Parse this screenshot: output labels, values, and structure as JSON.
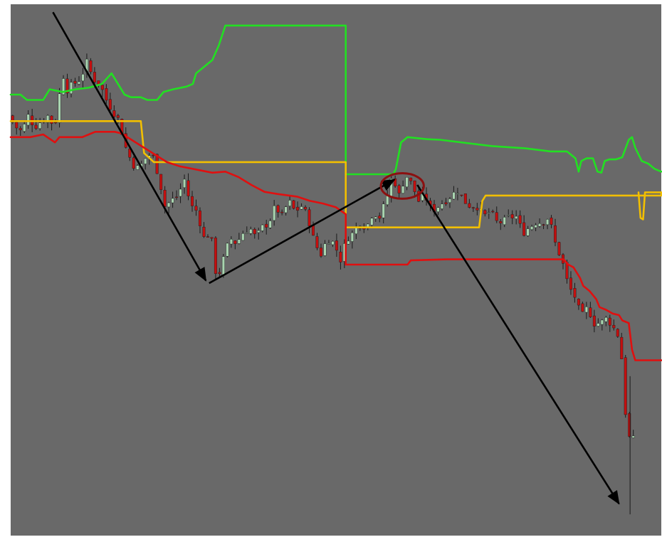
{
  "chart_data": {
    "type": "line",
    "title": "",
    "xlabel": "",
    "ylabel": "",
    "grid": false,
    "legend": "none",
    "x_range": [
      0,
      100
    ],
    "y_range": [
      0,
      100
    ],
    "colors": {
      "background": "#696969",
      "frame": "#ffffff",
      "upper_band": "#22e022",
      "middle_band": "#f2bf00",
      "lower_band": "#e01010",
      "bull_candle": "#a9d5b0",
      "bear_candle": "#c40f0f",
      "wick": "#1a1a1a",
      "arrow": "#000000",
      "highlight_ellipse": "#8b1010"
    },
    "series": [
      {
        "role": "upper-band",
        "color": "#22e022",
        "points": [
          [
            0,
            83
          ],
          [
            1.5,
            83
          ],
          [
            2.5,
            82
          ],
          [
            5,
            82
          ],
          [
            6,
            84
          ],
          [
            8,
            83.5
          ],
          [
            10,
            84
          ],
          [
            12,
            84.3
          ],
          [
            14,
            85
          ],
          [
            15.5,
            87
          ],
          [
            16.5,
            85
          ],
          [
            17.5,
            83
          ],
          [
            18.5,
            82.5
          ],
          [
            20,
            82.5
          ],
          [
            21,
            82
          ],
          [
            22.5,
            82
          ],
          [
            23.5,
            83.5
          ],
          [
            25,
            84
          ],
          [
            27,
            84.5
          ],
          [
            28,
            85
          ],
          [
            28.5,
            87
          ],
          [
            29.5,
            88
          ],
          [
            31,
            89.5
          ],
          [
            32,
            92.3
          ],
          [
            33,
            96
          ],
          [
            51.5,
            96
          ],
          [
            51.5,
            68
          ],
          [
            58.8,
            68
          ],
          [
            59.2,
            69
          ],
          [
            60,
            74
          ],
          [
            61,
            75
          ],
          [
            64,
            74.6
          ],
          [
            66,
            74.5
          ],
          [
            70,
            73.9
          ],
          [
            74,
            73.3
          ],
          [
            79,
            72.9
          ],
          [
            83,
            72.3
          ],
          [
            85.5,
            72.3
          ],
          [
            86.8,
            71
          ],
          [
            87.3,
            68.5
          ],
          [
            87.7,
            70.5
          ],
          [
            88.5,
            71
          ],
          [
            89.5,
            71
          ],
          [
            90.2,
            68.5
          ],
          [
            90.8,
            68.3
          ],
          [
            91.3,
            70.5
          ],
          [
            92,
            70.8
          ],
          [
            93,
            70.8
          ],
          [
            94,
            71.2
          ],
          [
            95,
            74.5
          ],
          [
            95.5,
            75
          ],
          [
            96,
            73
          ],
          [
            97,
            70.5
          ],
          [
            98,
            70
          ],
          [
            99,
            69
          ],
          [
            100,
            68.5
          ]
        ]
      },
      {
        "role": "middle-band",
        "color": "#f2bf00",
        "points": [
          [
            0,
            78
          ],
          [
            20,
            78
          ],
          [
            20.5,
            72
          ],
          [
            22,
            70.3
          ],
          [
            24,
            70.3
          ],
          [
            51.5,
            70.3
          ],
          [
            51.5,
            58
          ],
          [
            53,
            58
          ],
          [
            72,
            58
          ],
          [
            72.5,
            63
          ],
          [
            73,
            64
          ],
          [
            100,
            64
          ],
          [
            100,
            64.6
          ],
          [
            97.5,
            64.6
          ],
          [
            97.2,
            59.5
          ],
          [
            96.8,
            59.8
          ],
          [
            96.5,
            64.6
          ]
        ]
      },
      {
        "role": "lower-band",
        "color": "#e01010",
        "points": [
          [
            0,
            75
          ],
          [
            3,
            75
          ],
          [
            5,
            75.5
          ],
          [
            6.8,
            74
          ],
          [
            7.5,
            75
          ],
          [
            11,
            75
          ],
          [
            13,
            76
          ],
          [
            16,
            76
          ],
          [
            17,
            75.7
          ],
          [
            24,
            70.3
          ],
          [
            26,
            69.5
          ],
          [
            31,
            68.3
          ],
          [
            33,
            68.5
          ],
          [
            35,
            67.5
          ],
          [
            37,
            66
          ],
          [
            39,
            64.7
          ],
          [
            41,
            64.3
          ],
          [
            44,
            63.8
          ],
          [
            46,
            63
          ],
          [
            48,
            62.5
          ],
          [
            50,
            61.8
          ],
          [
            51.5,
            60.5
          ],
          [
            51.5,
            51
          ],
          [
            57,
            51
          ],
          [
            61,
            51
          ],
          [
            61.5,
            51.8
          ],
          [
            67,
            52
          ],
          [
            85,
            52
          ],
          [
            85.7,
            51
          ],
          [
            86.5,
            50.5
          ],
          [
            87.5,
            48.5
          ],
          [
            88,
            47
          ],
          [
            89,
            46
          ],
          [
            90,
            44.5
          ],
          [
            90.5,
            43
          ],
          [
            91.5,
            42.5
          ],
          [
            92.5,
            41.8
          ],
          [
            93.5,
            41.5
          ],
          [
            94,
            40.5
          ],
          [
            95,
            40
          ],
          [
            95.5,
            35
          ],
          [
            96,
            33
          ],
          [
            100,
            33
          ]
        ]
      }
    ],
    "price": {
      "role": "candlesticks",
      "points": [
        [
          0,
          79
        ],
        [
          1,
          77
        ],
        [
          2,
          76
        ],
        [
          3,
          79
        ],
        [
          4,
          77
        ],
        [
          5,
          78
        ],
        [
          6,
          79
        ],
        [
          7,
          77
        ],
        [
          7.5,
          80
        ],
        [
          8,
          85
        ],
        [
          8.5,
          87
        ],
        [
          9,
          84
        ],
        [
          10,
          85
        ],
        [
          11,
          86
        ],
        [
          12,
          89
        ],
        [
          13,
          86
        ],
        [
          14,
          85
        ],
        [
          15,
          82
        ],
        [
          16,
          80
        ],
        [
          17,
          78
        ],
        [
          18,
          73
        ],
        [
          19,
          70
        ],
        [
          20,
          69
        ],
        [
          21,
          71
        ],
        [
          22,
          72
        ],
        [
          23,
          68
        ],
        [
          24,
          62
        ],
        [
          25,
          63
        ],
        [
          26,
          64
        ],
        [
          27,
          67
        ],
        [
          28,
          62
        ],
        [
          29,
          61
        ],
        [
          30,
          56
        ],
        [
          31,
          57
        ],
        [
          32,
          48
        ],
        [
          33,
          52
        ],
        [
          34,
          56
        ],
        [
          35,
          55
        ],
        [
          36,
          57
        ],
        [
          37,
          58
        ],
        [
          38,
          56
        ],
        [
          39,
          58
        ],
        [
          40,
          59
        ],
        [
          41,
          62
        ],
        [
          42,
          60
        ],
        [
          43,
          63
        ],
        [
          44,
          61
        ],
        [
          45,
          62
        ],
        [
          46,
          60
        ],
        [
          47,
          55
        ],
        [
          48,
          53
        ],
        [
          49,
          56
        ],
        [
          50,
          55
        ],
        [
          51,
          52
        ],
        [
          52,
          56
        ],
        [
          53,
          57
        ],
        [
          54,
          59
        ],
        [
          55,
          58
        ],
        [
          56,
          61
        ],
        [
          57,
          60
        ],
        [
          58,
          63
        ],
        [
          59,
          68
        ],
        [
          60,
          64
        ],
        [
          61,
          68
        ],
        [
          62,
          66
        ],
        [
          63,
          63
        ],
        [
          64,
          64
        ],
        [
          65,
          61
        ],
        [
          66,
          62
        ],
        [
          67,
          63
        ],
        [
          68,
          64
        ],
        [
          69,
          65
        ],
        [
          70,
          63
        ],
        [
          71,
          62
        ],
        [
          72,
          62
        ],
        [
          73,
          60
        ],
        [
          74,
          61
        ],
        [
          75,
          59
        ],
        [
          76,
          59
        ],
        [
          77,
          60
        ],
        [
          78,
          60
        ],
        [
          79,
          57
        ],
        [
          80,
          58
        ],
        [
          81,
          59
        ],
        [
          82,
          59
        ],
        [
          83,
          60
        ],
        [
          84,
          55
        ],
        [
          85,
          52
        ],
        [
          86,
          47
        ],
        [
          87,
          45
        ],
        [
          88,
          41
        ],
        [
          89,
          43
        ],
        [
          90,
          40
        ],
        [
          91,
          40
        ],
        [
          92,
          41
        ],
        [
          93,
          39
        ],
        [
          94,
          37
        ],
        [
          94.5,
          28
        ],
        [
          95,
          20
        ],
        [
          95.5,
          18
        ]
      ]
    },
    "annotations": [
      {
        "type": "arrow",
        "from": [
          6.5,
          98.5
        ],
        "to": [
          30,
          48
        ]
      },
      {
        "type": "arrow",
        "from": [
          30.5,
          47.5
        ],
        "to": [
          59,
          67
        ]
      },
      {
        "type": "arrow",
        "from": [
          62.5,
          66
        ],
        "to": [
          93.5,
          6
        ]
      },
      {
        "type": "ellipse",
        "center": [
          60.2,
          65.8
        ],
        "rx": 3.3,
        "ry": 2.4
      }
    ]
  }
}
